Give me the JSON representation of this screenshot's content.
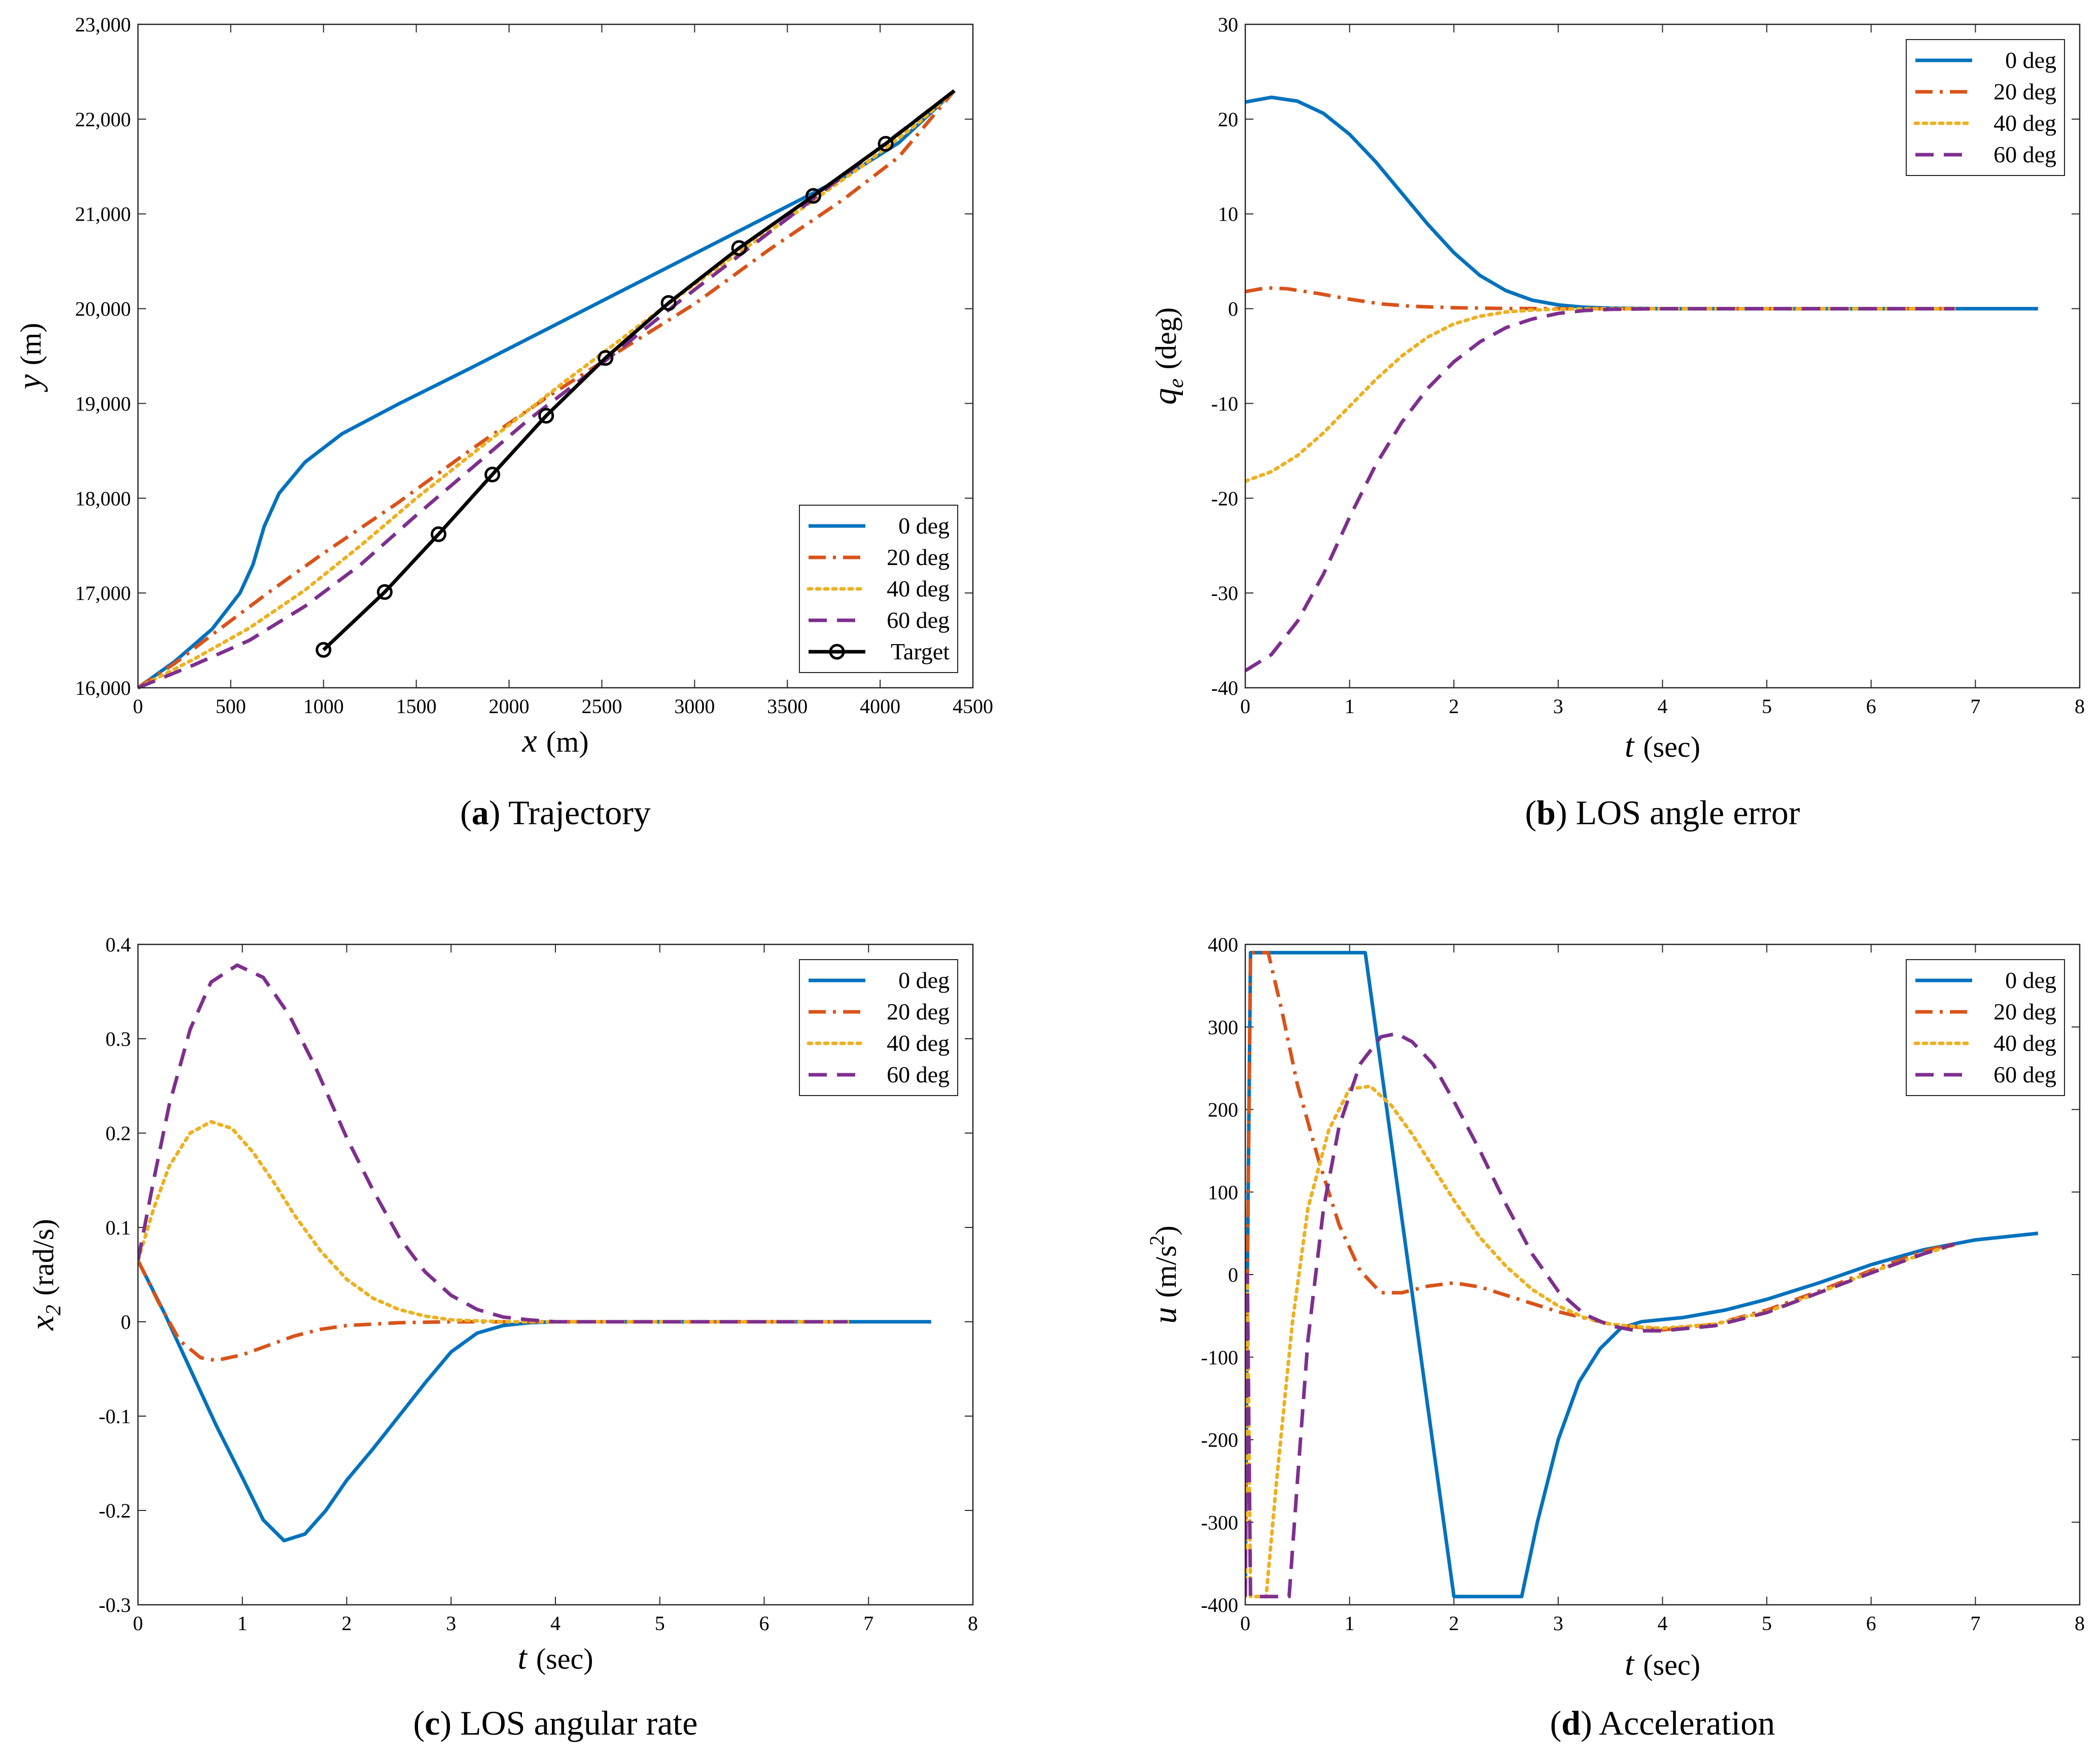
{
  "colors": {
    "blue": "#0072BD",
    "orange": "#D95319",
    "yellow": "#EDB120",
    "purple": "#7E2F8E",
    "black": "#000000"
  },
  "chart_data": [
    {
      "type": "line",
      "id": "a",
      "caption_letter": "a",
      "caption_text": "Trajectory",
      "xlabel": "x",
      "xunit": "(m)",
      "ylabel": "y",
      "yunit": "(m)",
      "xlim": [
        0,
        4500
      ],
      "ylim": [
        16000,
        23000
      ],
      "xticks": [
        0,
        500,
        1000,
        1500,
        2000,
        2500,
        3000,
        3500,
        4000,
        4500
      ],
      "xtick_labels": [
        "0",
        "500",
        "1000",
        "1500",
        "2000",
        "2500",
        "3000",
        "3500",
        "4000",
        "4500"
      ],
      "yticks": [
        16000,
        17000,
        18000,
        19000,
        20000,
        21000,
        22000,
        23000
      ],
      "ytick_labels": [
        "16,000",
        "17,000",
        "18,000",
        "19,000",
        "20,000",
        "21,000",
        "22,000",
        "23,000"
      ],
      "legend_position": "bottom-right",
      "series": [
        {
          "name": "0 deg",
          "color": "blue",
          "dash": "solid",
          "x": [
            0,
            200,
            400,
            550,
            620,
            680,
            760,
            900,
            1100,
            1400,
            1800,
            2200,
            2600,
            3000,
            3400,
            3800,
            4100,
            4400
          ],
          "y": [
            16000,
            16280,
            16620,
            17000,
            17300,
            17700,
            18050,
            18380,
            18680,
            18990,
            19380,
            19780,
            20180,
            20580,
            20980,
            21380,
            21750,
            22300
          ]
        },
        {
          "name": "20 deg",
          "color": "orange",
          "dash": "dashdot",
          "x": [
            0,
            200,
            400,
            700,
            1000,
            1400,
            1800,
            2200,
            2600,
            3000,
            3400,
            3800,
            4100,
            4400
          ],
          "y": [
            16000,
            16260,
            16560,
            17000,
            17420,
            17950,
            18520,
            19060,
            19560,
            20050,
            20620,
            21150,
            21600,
            22300
          ]
        },
        {
          "name": "40 deg",
          "color": "yellow",
          "dash": "dotted",
          "x": [
            0,
            300,
            600,
            900,
            1200,
            1500,
            1900,
            2300,
            2700,
            3100,
            3500,
            3900,
            4200,
            4400
          ],
          "y": [
            16000,
            16300,
            16630,
            17030,
            17500,
            18000,
            18620,
            19230,
            19820,
            20400,
            20950,
            21500,
            21950,
            22300
          ]
        },
        {
          "name": "60 deg",
          "color": "purple",
          "dash": "dashed",
          "x": [
            0,
            300,
            600,
            900,
            1200,
            1500,
            1800,
            2100,
            2500,
            2900,
            3300,
            3700,
            4000,
            4400
          ],
          "y": [
            16000,
            16240,
            16500,
            16860,
            17300,
            17820,
            18320,
            18820,
            19420,
            20050,
            20650,
            21250,
            21700,
            22300
          ]
        },
        {
          "name": "Target",
          "color": "black",
          "dash": "solid",
          "markers": true,
          "x": [
            1000,
            1330,
            1620,
            1910,
            2200,
            2520,
            2860,
            3240,
            3640,
            4030,
            4400
          ],
          "y": [
            16400,
            17010,
            17620,
            18250,
            18870,
            19480,
            20060,
            20640,
            21190,
            21740,
            22300
          ],
          "marker_x": [
            1000,
            1330,
            1620,
            1910,
            2200,
            2520,
            2860,
            3240,
            3640,
            4030
          ],
          "marker_y": [
            16400,
            17010,
            17620,
            18250,
            18870,
            19480,
            20060,
            20640,
            21190,
            21740
          ]
        }
      ]
    },
    {
      "type": "line",
      "id": "b",
      "caption_letter": "b",
      "caption_text": "LOS angle error",
      "xlabel": "t",
      "xunit": "(sec)",
      "ylabel": "q",
      "ysub": "e",
      "yunit": "(deg)",
      "xlim": [
        0,
        8
      ],
      "ylim": [
        -40,
        30
      ],
      "xticks": [
        0,
        1,
        2,
        3,
        4,
        5,
        6,
        7,
        8
      ],
      "xtick_labels": [
        "0",
        "1",
        "2",
        "3",
        "4",
        "5",
        "6",
        "7",
        "8"
      ],
      "yticks": [
        -40,
        -30,
        -20,
        -10,
        0,
        10,
        20,
        30
      ],
      "ytick_labels": [
        "-40",
        "-30",
        "-20",
        "-10",
        "0",
        "10",
        "20",
        "30"
      ],
      "legend_position": "top-right",
      "series": [
        {
          "name": "0 deg",
          "color": "blue",
          "dash": "solid",
          "x": [
            0,
            0.25,
            0.5,
            0.75,
            1,
            1.25,
            1.5,
            1.75,
            2,
            2.25,
            2.5,
            2.75,
            3,
            3.25,
            3.5,
            4,
            5,
            6,
            7,
            7.6
          ],
          "y": [
            21.8,
            22.3,
            21.9,
            20.6,
            18.4,
            15.5,
            12.2,
            8.9,
            5.9,
            3.5,
            1.9,
            0.9,
            0.4,
            0.15,
            0.05,
            0,
            0,
            0,
            0,
            0
          ]
        },
        {
          "name": "20 deg",
          "color": "orange",
          "dash": "dashdot",
          "x": [
            0,
            0.2,
            0.4,
            0.7,
            1,
            1.3,
            1.6,
            2,
            2.5,
            3,
            4,
            5,
            6,
            6.8
          ],
          "y": [
            1.8,
            2.2,
            2.1,
            1.6,
            1.0,
            0.5,
            0.25,
            0.1,
            0.02,
            0,
            0,
            0,
            0,
            0
          ]
        },
        {
          "name": "40 deg",
          "color": "yellow",
          "dash": "dotted",
          "x": [
            0,
            0.25,
            0.5,
            0.75,
            1,
            1.25,
            1.5,
            1.75,
            2,
            2.25,
            2.5,
            2.75,
            3,
            3.5,
            4,
            5,
            6,
            6.8
          ],
          "y": [
            -18.2,
            -17.2,
            -15.5,
            -13.1,
            -10.3,
            -7.5,
            -5.0,
            -3.0,
            -1.6,
            -0.8,
            -0.35,
            -0.15,
            -0.05,
            0,
            0,
            0,
            0,
            0
          ]
        },
        {
          "name": "60 deg",
          "color": "purple",
          "dash": "dashed",
          "x": [
            0,
            0.25,
            0.5,
            0.75,
            1,
            1.25,
            1.5,
            1.75,
            2,
            2.25,
            2.5,
            2.75,
            3,
            3.25,
            3.5,
            4,
            5,
            6,
            6.8
          ],
          "y": [
            -38.2,
            -36.5,
            -33.0,
            -28.0,
            -22.0,
            -16.5,
            -12.0,
            -8.4,
            -5.6,
            -3.5,
            -2.0,
            -1.1,
            -0.5,
            -0.2,
            -0.07,
            0,
            0,
            0,
            0
          ]
        }
      ]
    },
    {
      "type": "line",
      "id": "c",
      "caption_letter": "c",
      "caption_text": "LOS angular rate",
      "xlabel": "t",
      "xunit": "(sec)",
      "ylabel": "x",
      "ysub": "2",
      "yunit": "(rad/s)",
      "xlim": [
        0,
        8
      ],
      "ylim": [
        -0.3,
        0.4
      ],
      "xticks": [
        0,
        1,
        2,
        3,
        4,
        5,
        6,
        7,
        8
      ],
      "xtick_labels": [
        "0",
        "1",
        "2",
        "3",
        "4",
        "5",
        "6",
        "7",
        "8"
      ],
      "yticks": [
        -0.3,
        -0.2,
        -0.1,
        0,
        0.1,
        0.2,
        0.3,
        0.4
      ],
      "ytick_labels": [
        "-0.3",
        "-0.2",
        "-0.1",
        "0",
        "0.1",
        "0.2",
        "0.3",
        "0.4"
      ],
      "legend_position": "top-right",
      "series": [
        {
          "name": "0 deg",
          "color": "blue",
          "dash": "solid",
          "x": [
            0,
            0.25,
            0.5,
            0.75,
            1,
            1.2,
            1.4,
            1.6,
            1.8,
            2,
            2.25,
            2.5,
            2.75,
            3,
            3.25,
            3.5,
            3.75,
            4,
            5,
            6,
            7,
            7.6
          ],
          "y": [
            0.065,
            0.01,
            -0.05,
            -0.11,
            -0.165,
            -0.21,
            -0.232,
            -0.225,
            -0.2,
            -0.168,
            -0.135,
            -0.1,
            -0.065,
            -0.032,
            -0.012,
            -0.004,
            -0.001,
            0,
            0,
            0,
            0,
            0
          ]
        },
        {
          "name": "20 deg",
          "color": "orange",
          "dash": "dashdot",
          "x": [
            0,
            0.2,
            0.4,
            0.6,
            0.75,
            1,
            1.25,
            1.5,
            1.75,
            2,
            2.5,
            3,
            3.5,
            4,
            5,
            6,
            6.8
          ],
          "y": [
            0.065,
            0.02,
            -0.02,
            -0.038,
            -0.041,
            -0.035,
            -0.025,
            -0.015,
            -0.008,
            -0.004,
            -0.001,
            0,
            0,
            0,
            0,
            0,
            0
          ]
        },
        {
          "name": "40 deg",
          "color": "yellow",
          "dash": "dotted",
          "x": [
            0,
            0.15,
            0.3,
            0.5,
            0.7,
            0.9,
            1.1,
            1.3,
            1.5,
            1.75,
            2,
            2.25,
            2.5,
            2.75,
            3,
            3.5,
            4,
            5,
            6,
            6.8
          ],
          "y": [
            0.065,
            0.12,
            0.165,
            0.2,
            0.212,
            0.205,
            0.18,
            0.148,
            0.113,
            0.075,
            0.045,
            0.025,
            0.013,
            0.006,
            0.002,
            0,
            0,
            0,
            0,
            0
          ]
        },
        {
          "name": "60 deg",
          "color": "purple",
          "dash": "dashed",
          "x": [
            0,
            0.15,
            0.3,
            0.5,
            0.7,
            0.95,
            1.2,
            1.45,
            1.7,
            2,
            2.25,
            2.5,
            2.75,
            3,
            3.25,
            3.5,
            3.75,
            4,
            5,
            6,
            6.8
          ],
          "y": [
            0.065,
            0.15,
            0.23,
            0.31,
            0.36,
            0.378,
            0.365,
            0.325,
            0.27,
            0.195,
            0.14,
            0.09,
            0.053,
            0.028,
            0.013,
            0.005,
            0.002,
            0,
            0,
            0,
            0
          ]
        }
      ]
    },
    {
      "type": "line",
      "id": "d",
      "caption_letter": "d",
      "caption_text": "Acceleration",
      "xlabel": "t",
      "xunit": "(sec)",
      "ylabel": "u",
      "yunit": "(m/s",
      "yunit_sup": "2",
      "yunit_close": ")",
      "xlim": [
        0,
        8
      ],
      "ylim": [
        -400,
        400
      ],
      "xticks": [
        0,
        1,
        2,
        3,
        4,
        5,
        6,
        7,
        8
      ],
      "xtick_labels": [
        "0",
        "1",
        "2",
        "3",
        "4",
        "5",
        "6",
        "7",
        "8"
      ],
      "yticks": [
        -400,
        -300,
        -200,
        -100,
        0,
        100,
        200,
        300,
        400
      ],
      "ytick_labels": [
        "-400",
        "-300",
        "-200",
        "-100",
        "0",
        "100",
        "200",
        "300",
        "400"
      ],
      "legend_position": "top-right",
      "series": [
        {
          "name": "0 deg",
          "color": "blue",
          "dash": "solid",
          "x": [
            0,
            0.02,
            0.05,
            1.15,
            2.0,
            2.65,
            2.8,
            3.0,
            3.2,
            3.4,
            3.6,
            3.8,
            4.2,
            4.6,
            5.0,
            5.5,
            6.0,
            6.5,
            7.0,
            7.6
          ],
          "y": [
            -390,
            0,
            390,
            390,
            -390,
            -390,
            -300,
            -200,
            -130,
            -90,
            -65,
            -57,
            -52,
            -43,
            -30,
            -10,
            12,
            30,
            42,
            50
          ]
        },
        {
          "name": "20 deg",
          "color": "orange",
          "dash": "dashdot",
          "x": [
            0,
            0.02,
            0.05,
            0.22,
            0.35,
            0.5,
            0.7,
            0.9,
            1.1,
            1.3,
            1.5,
            1.75,
            2.0,
            2.25,
            2.5,
            3.0,
            3.5,
            4.0,
            4.5,
            5.0,
            5.5,
            6.0,
            6.5,
            6.8
          ],
          "y": [
            -390,
            0,
            390,
            390,
            320,
            230,
            140,
            60,
            5,
            -22,
            -22,
            -14,
            -10,
            -15,
            -25,
            -45,
            -60,
            -67,
            -60,
            -43,
            -20,
            5,
            28,
            38
          ]
        },
        {
          "name": "40 deg",
          "color": "yellow",
          "dash": "dotted",
          "x": [
            0,
            0.02,
            0.05,
            0.15,
            0.2,
            0.3,
            0.45,
            0.6,
            0.8,
            1.0,
            1.2,
            1.4,
            1.6,
            1.8,
            2.0,
            2.25,
            2.5,
            2.75,
            3.0,
            3.25,
            3.5,
            3.75,
            4.0,
            4.5,
            5.0,
            5.5,
            6.0,
            6.5,
            6.8
          ],
          "y": [
            -390,
            0,
            -390,
            -390,
            -390,
            -250,
            -60,
            80,
            175,
            225,
            228,
            205,
            170,
            130,
            90,
            45,
            10,
            -18,
            -38,
            -52,
            -60,
            -63,
            -65,
            -60,
            -45,
            -22,
            3,
            25,
            36
          ]
        },
        {
          "name": "60 deg",
          "color": "purple",
          "dash": "dashed",
          "x": [
            0,
            0.02,
            0.05,
            0.3,
            0.42,
            0.5,
            0.6,
            0.75,
            0.9,
            1.1,
            1.3,
            1.45,
            1.6,
            1.8,
            2.0,
            2.25,
            2.5,
            2.75,
            3.0,
            3.25,
            3.5,
            3.75,
            4.0,
            4.5,
            5.0,
            5.5,
            6.0,
            6.5,
            6.8
          ],
          "y": [
            -390,
            0,
            -390,
            -390,
            -390,
            -250,
            -80,
            80,
            180,
            255,
            288,
            292,
            282,
            255,
            210,
            150,
            85,
            25,
            -20,
            -48,
            -62,
            -68,
            -68,
            -62,
            -46,
            -22,
            2,
            25,
            37
          ]
        }
      ]
    }
  ]
}
